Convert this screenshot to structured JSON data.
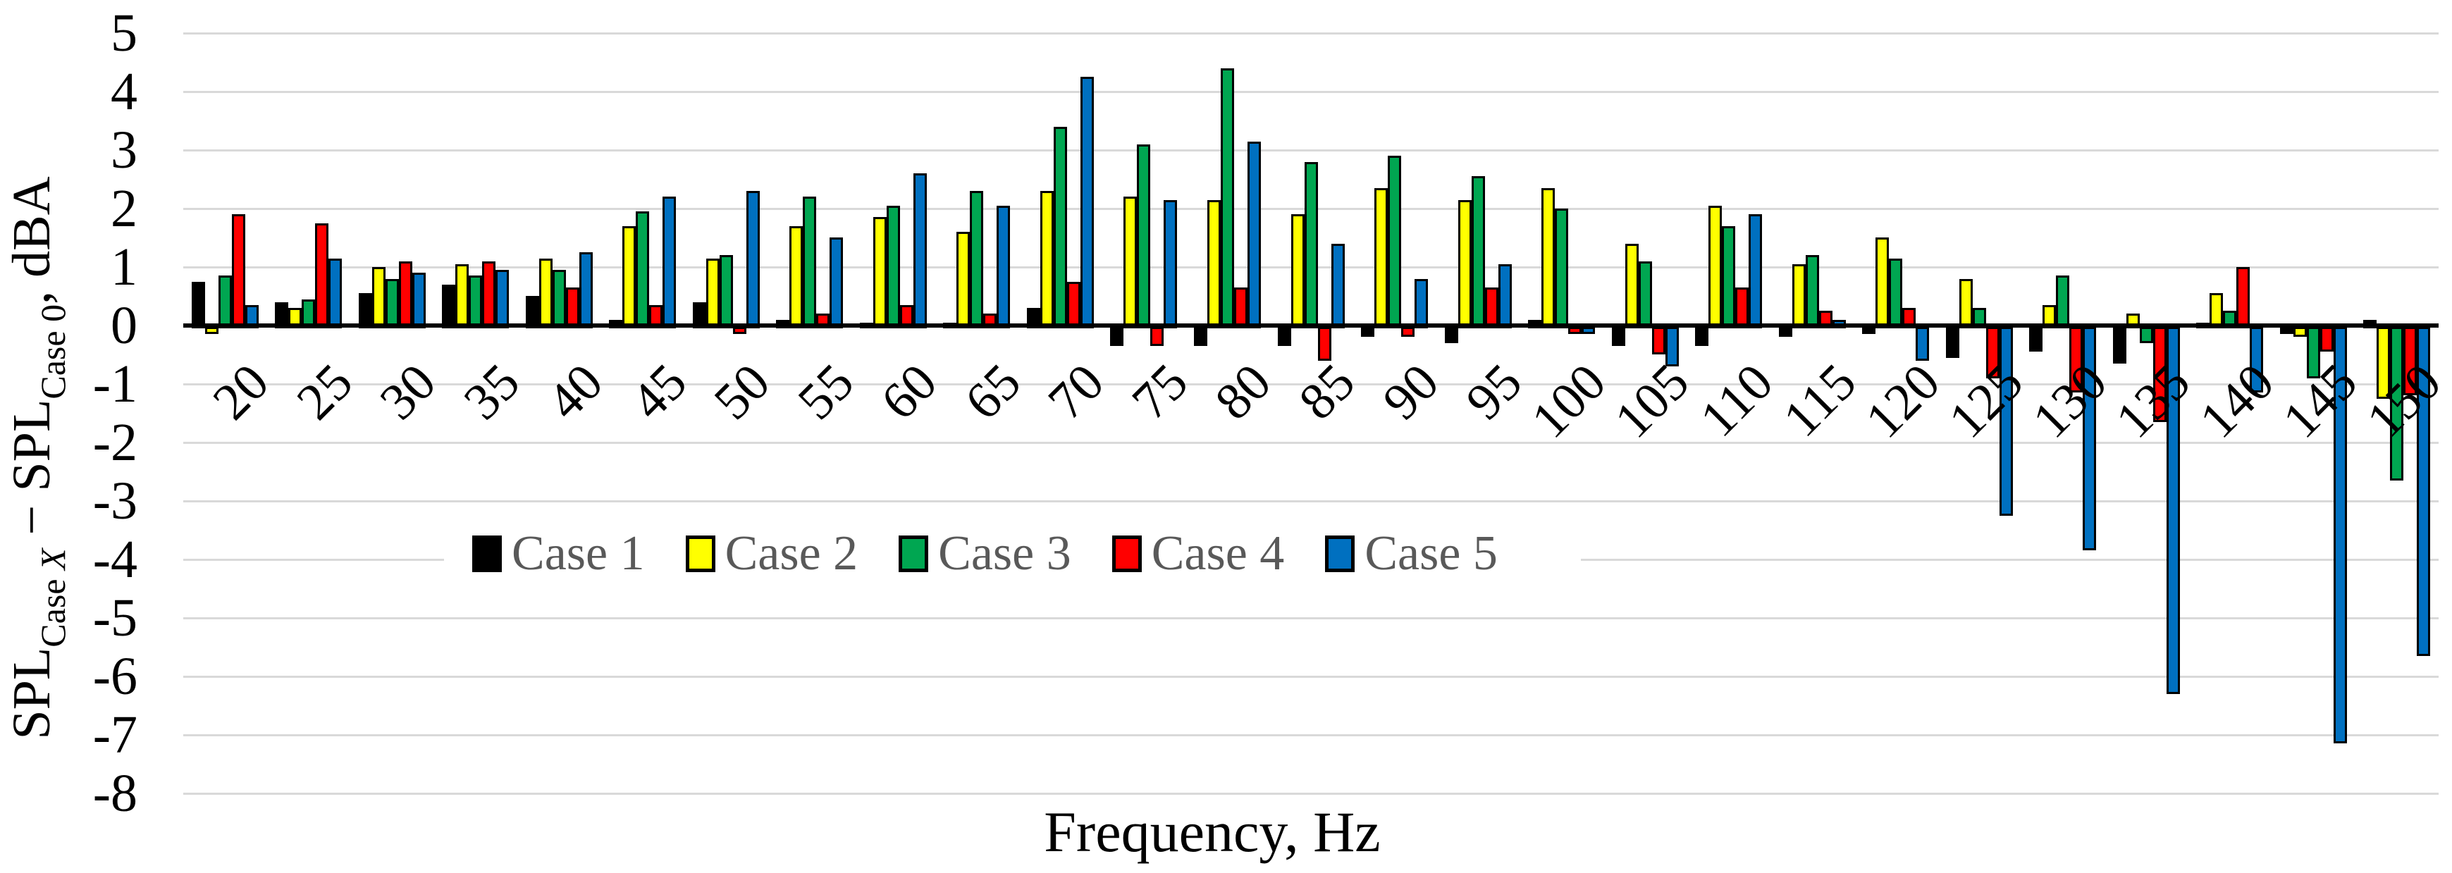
{
  "chart_data": {
    "type": "bar",
    "title": "",
    "xlabel": "Frequency, Hz",
    "ylabel_plain": "SPL_CaseX − SPL_Case0, dBA",
    "ylabel_segments": [
      {
        "text": "SPL",
        "sub": false,
        "italic": false
      },
      {
        "text": "Case ",
        "sub": true,
        "italic": false
      },
      {
        "text": "X",
        "sub": true,
        "italic": true
      },
      {
        "text": " − SPL",
        "sub": false,
        "italic": false
      },
      {
        "text": "Case 0",
        "sub": true,
        "italic": false
      },
      {
        "text": ", dBA",
        "sub": false,
        "italic": false
      }
    ],
    "categories": [
      20,
      25,
      30,
      35,
      40,
      45,
      50,
      55,
      60,
      65,
      70,
      75,
      80,
      85,
      90,
      95,
      100,
      105,
      110,
      115,
      120,
      125,
      130,
      135,
      140,
      145,
      150
    ],
    "series": [
      {
        "name": "Case 1",
        "color": "#000000",
        "values": [
          0.75,
          0.4,
          0.55,
          0.7,
          0.5,
          0.1,
          0.4,
          0.1,
          0.05,
          0.05,
          0.3,
          -0.3,
          -0.3,
          -0.3,
          -0.15,
          -0.25,
          0.1,
          -0.3,
          -0.3,
          -0.15,
          -0.1,
          -0.5,
          -0.4,
          -0.6,
          0.05,
          -0.1,
          0.1
        ]
      },
      {
        "name": "Case 2",
        "color": "#FFFF00",
        "values": [
          -0.1,
          0.3,
          1.0,
          1.05,
          1.15,
          1.7,
          1.15,
          1.7,
          1.85,
          1.6,
          2.3,
          2.2,
          2.15,
          1.9,
          2.35,
          2.15,
          2.35,
          1.4,
          2.05,
          1.05,
          1.5,
          0.8,
          0.35,
          0.2,
          0.55,
          -0.15,
          -1.2
        ]
      },
      {
        "name": "Case 3",
        "color": "#00A651",
        "values": [
          0.85,
          0.45,
          0.8,
          0.85,
          0.95,
          1.95,
          1.2,
          2.2,
          2.05,
          2.3,
          3.4,
          3.1,
          4.4,
          2.8,
          2.9,
          2.55,
          2.0,
          1.1,
          1.7,
          1.2,
          1.15,
          0.3,
          0.85,
          -0.25,
          0.25,
          -0.85,
          -2.6
        ]
      },
      {
        "name": "Case 4",
        "color": "#FF0000",
        "values": [
          1.9,
          1.75,
          1.1,
          1.1,
          0.65,
          0.35,
          -0.1,
          0.2,
          0.35,
          0.2,
          0.75,
          -0.3,
          0.65,
          -0.55,
          -0.15,
          0.65,
          -0.1,
          -0.45,
          0.65,
          0.25,
          0.3,
          -0.85,
          -1.1,
          -1.6,
          1.0,
          -0.4,
          -1.15
        ]
      },
      {
        "name": "Case 5",
        "color": "#0070C0",
        "values": [
          0.35,
          1.15,
          0.9,
          0.95,
          1.25,
          2.2,
          2.3,
          1.5,
          2.6,
          2.05,
          4.25,
          2.15,
          3.15,
          1.4,
          0.8,
          1.05,
          -0.1,
          -0.65,
          1.9,
          0.1,
          -0.55,
          -3.2,
          -3.8,
          -6.25,
          -1.1,
          -7.1,
          -5.6
        ]
      }
    ],
    "ylim": [
      -8,
      5
    ],
    "ytick_step": 1,
    "ytick_labels": [
      "5",
      "4",
      "3",
      "2",
      "1",
      "0",
      "-1",
      "-2",
      "-3",
      "-4",
      "-5",
      "-6",
      "-7",
      "-8"
    ],
    "grid": true,
    "gridline_color": "#D9D9D9",
    "legend_position": "inside-lower-left",
    "legend_text_color": "#595959",
    "background_color": "#FFFFFF"
  }
}
